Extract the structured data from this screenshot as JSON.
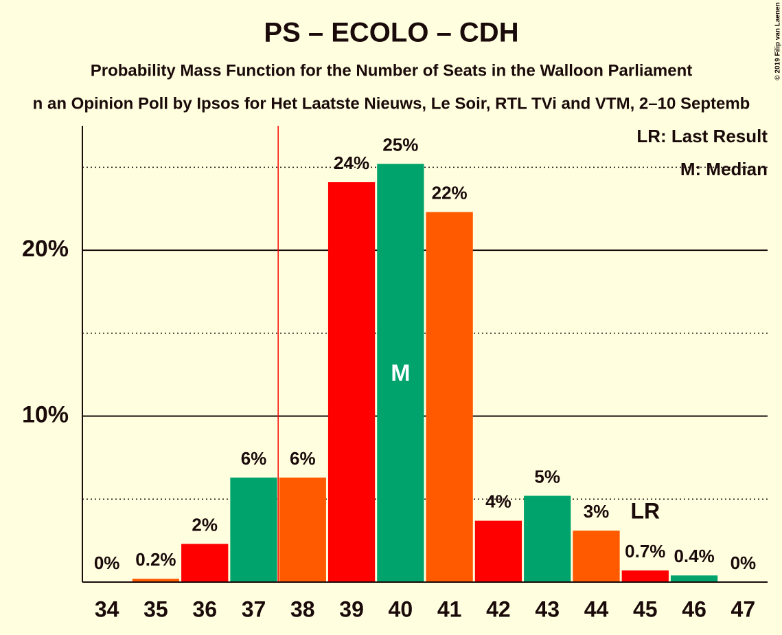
{
  "chart_data": {
    "type": "bar",
    "title": "PS – ECOLO – CDH",
    "subtitle": "Probability Mass Function for the Number of Seats in the Walloon Parliament",
    "subtitle2": "n an Opinion Poll by Ipsos for Het Laatste Nieuws, Le Soir, RTL TVi and VTM, 2–10 Septemb",
    "copyright": "© 2019 Filip van Laenen",
    "categories": [
      34,
      35,
      36,
      37,
      38,
      39,
      40,
      41,
      42,
      43,
      44,
      45,
      46,
      47
    ],
    "values": [
      0,
      0.2,
      2.3,
      6.3,
      6.3,
      24.1,
      25.2,
      22.3,
      3.7,
      5.2,
      3.1,
      0.7,
      0.4,
      0
    ],
    "value_labels": [
      "0%",
      "0.2%",
      "2%",
      "6%",
      "6%",
      "24%",
      "25%",
      "22%",
      "4%",
      "5%",
      "3%",
      "0.7%",
      "0.4%",
      "0%"
    ],
    "colors": [
      "#00a36b",
      "#ff5a00",
      "#ff0000",
      "#00a36b",
      "#ff5a00",
      "#ff0000",
      "#00a36b",
      "#ff5a00",
      "#ff0000",
      "#00a36b",
      "#ff5a00",
      "#ff0000",
      "#00a36b",
      "#ff5a00"
    ],
    "ylim": [
      0,
      27.5
    ],
    "yticks": [
      {
        "value": 10,
        "label": "10%"
      },
      {
        "value": 20,
        "label": "20%"
      }
    ],
    "minor_yticks": [
      5,
      15,
      25
    ],
    "majority_line": 37.5,
    "median": {
      "category": 40,
      "label": "M"
    },
    "last_result": {
      "category": 45,
      "label": "LR"
    },
    "legend": [
      "LR: Last Result",
      "M: Median"
    ]
  }
}
